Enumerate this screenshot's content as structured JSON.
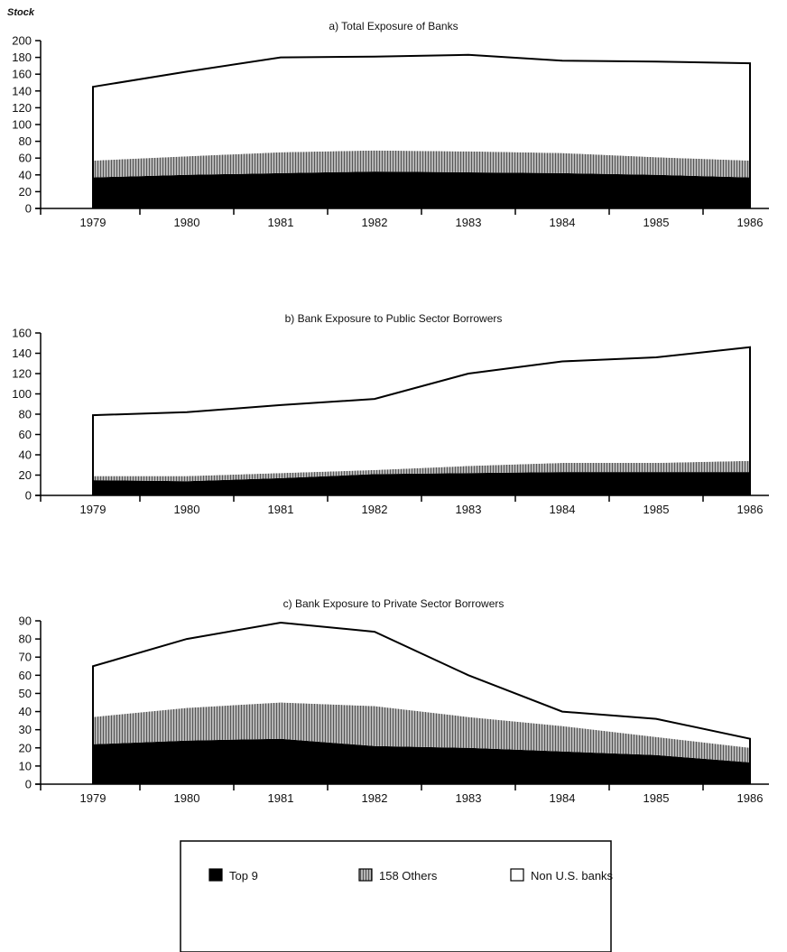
{
  "y_axis_label": "Stock",
  "colors": {
    "top9": "#000000",
    "others": "#9a9a9a",
    "nonus": "#ffffff",
    "axis": "#000000"
  },
  "legend": {
    "items": [
      {
        "key": "top9",
        "label": "Top 9"
      },
      {
        "key": "others",
        "label": "158 Others"
      },
      {
        "key": "nonus",
        "label": "Non U.S. banks"
      }
    ]
  },
  "chart_data": [
    {
      "type": "area",
      "stacked": true,
      "title": "a) Total Exposure of Banks",
      "x": [
        "1979",
        "1980",
        "1981",
        "1982",
        "1983",
        "1984",
        "1985",
        "1986"
      ],
      "ylim": [
        0,
        200
      ],
      "yticks": [
        0,
        20,
        40,
        60,
        80,
        100,
        120,
        140,
        160,
        180,
        200
      ],
      "series": [
        {
          "name": "Top 9",
          "values": [
            37,
            40,
            42,
            44,
            43,
            42,
            40,
            37
          ]
        },
        {
          "name": "158 Others",
          "values": [
            20,
            22,
            25,
            25,
            25,
            24,
            21,
            20
          ]
        },
        {
          "name": "Non U.S. banks",
          "values": [
            88,
            101,
            113,
            112,
            115,
            110,
            114,
            116
          ]
        }
      ]
    },
    {
      "type": "area",
      "stacked": true,
      "title": "b) Bank Exposure to Public Sector Borrowers",
      "x": [
        "1979",
        "1980",
        "1981",
        "1982",
        "1983",
        "1984",
        "1985",
        "1986"
      ],
      "ylim": [
        0,
        160
      ],
      "yticks": [
        0,
        20,
        40,
        60,
        80,
        100,
        120,
        140,
        160
      ],
      "series": [
        {
          "name": "Top 9",
          "values": [
            15,
            14,
            17,
            21,
            22,
            23,
            23,
            23
          ]
        },
        {
          "name": "158 Others",
          "values": [
            4,
            5,
            5,
            4,
            7,
            9,
            9,
            11
          ]
        },
        {
          "name": "Non U.S. banks",
          "values": [
            60,
            63,
            67,
            70,
            91,
            100,
            104,
            112
          ]
        }
      ]
    },
    {
      "type": "area",
      "stacked": true,
      "title": "c) Bank Exposure to Private Sector Borrowers",
      "x": [
        "1979",
        "1980",
        "1981",
        "1982",
        "1983",
        "1984",
        "1985",
        "1986"
      ],
      "ylim": [
        0,
        90
      ],
      "yticks": [
        0,
        10,
        20,
        30,
        40,
        50,
        60,
        70,
        80,
        90
      ],
      "series": [
        {
          "name": "Top 9",
          "values": [
            22,
            24,
            25,
            21,
            20,
            18,
            16,
            12
          ]
        },
        {
          "name": "158 Others",
          "values": [
            15,
            18,
            20,
            22,
            17,
            14,
            10,
            8
          ]
        },
        {
          "name": "Non U.S. banks",
          "values": [
            28,
            38,
            44,
            41,
            23,
            8,
            10,
            5
          ]
        }
      ]
    }
  ]
}
